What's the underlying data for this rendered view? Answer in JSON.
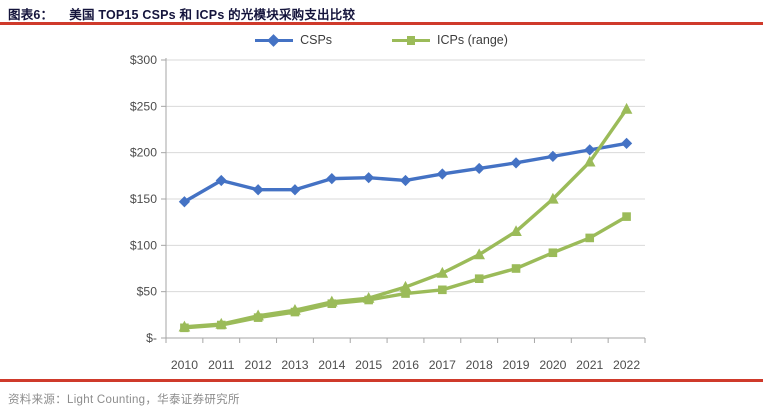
{
  "header": {
    "title_prefix": "图表6：",
    "title_text": "美国 TOP15 CSPs 和 ICPs 的光模块采购支出比较"
  },
  "legend": [
    {
      "label": "CSPs",
      "marker": "diamond",
      "color": "#4472C4"
    },
    {
      "label": "ICPs (range)",
      "marker": "square",
      "color": "#9BBB59"
    }
  ],
  "colors": {
    "csps_blue": "#4472C4",
    "icps_green": "#9BBB59",
    "accent_red": "#cf3a2b",
    "gridline": "#d9d9d9",
    "axis": "#a6a6a6",
    "tick_label": "#4d4d4d"
  },
  "chart_data": {
    "type": "line",
    "title": "美国 TOP15 CSPs 和 ICPs 的光模块采购支出比较",
    "categories": [
      "2010",
      "2011",
      "2012",
      "2013",
      "2014",
      "2015",
      "2016",
      "2017",
      "2018",
      "2019",
      "2020",
      "2021",
      "2022"
    ],
    "series": [
      {
        "name": "CSPs",
        "marker": "diamond",
        "color": "#4472C4",
        "values": [
          147,
          170,
          160,
          160,
          172,
          173,
          170,
          177,
          183,
          189,
          196,
          203,
          210
        ]
      },
      {
        "name": "ICPs (range) upper",
        "marker": "triangle",
        "color": "#9BBB59",
        "values": [
          12,
          15,
          24,
          30,
          39,
          43,
          55,
          70,
          90,
          115,
          150,
          190,
          247
        ]
      },
      {
        "name": "ICPs (range) lower",
        "marker": "square",
        "color": "#9BBB59",
        "values": [
          11,
          14,
          22,
          28,
          37,
          41,
          48,
          52,
          64,
          75,
          92,
          108,
          131
        ]
      }
    ],
    "y_axis": {
      "min": 0,
      "max": 300,
      "step": 50,
      "tick_labels": [
        "$-",
        "$50",
        "$100",
        "$150",
        "$200",
        "$250",
        "$300"
      ]
    },
    "x_axis_label": "",
    "grid": true,
    "legend_position": "top"
  },
  "footer": {
    "source_text": "资料来源：Light Counting，华泰证券研究所"
  }
}
